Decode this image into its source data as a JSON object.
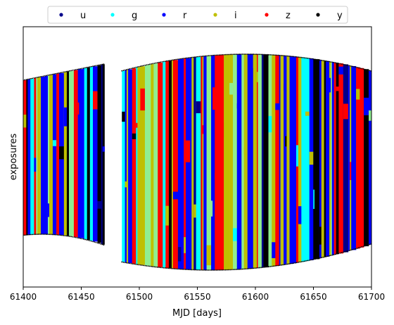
{
  "chart_data": {
    "type": "scatter",
    "xlabel": "MJD [days]",
    "ylabel": "exposures",
    "xlim": [
      61400,
      61700
    ],
    "x_ticks": [
      61400,
      61450,
      61500,
      61550,
      61600,
      61650,
      61700
    ],
    "y_ticks_shown": false,
    "grid": false,
    "legend": {
      "placement": "top, outside plot, single row",
      "entries": [
        {
          "label": "u",
          "color": "#00008b"
        },
        {
          "label": "g",
          "color": "#00ffff"
        },
        {
          "label": "r",
          "color": "#0000ff"
        },
        {
          "label": "i",
          "color": "#bfbf00"
        },
        {
          "label": "z",
          "color": "#ff0000"
        },
        {
          "label": "y",
          "color": "#000000"
        }
      ]
    },
    "extra_colors": {
      "mixed": "#90ee90"
    },
    "observing_seasons": [
      {
        "x_start": 61400,
        "x_end": 61470
      },
      {
        "x_start": 61485,
        "x_end": 61700
      }
    ]
  }
}
